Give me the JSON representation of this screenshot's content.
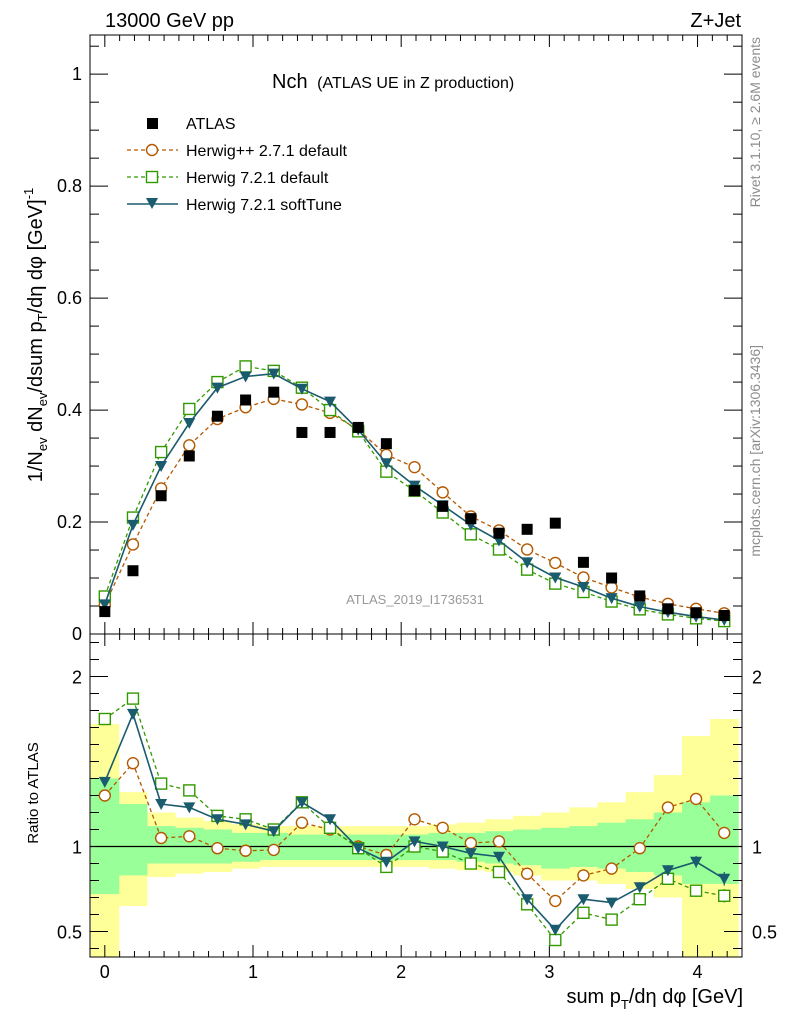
{
  "header": {
    "left": "13000 GeV pp",
    "right": "Z+Jet"
  },
  "side_labels": {
    "rivet": "Rivet 3.1.10, ≥ 2.6M events",
    "mcplots": "mcplots.cern.ch [arXiv:1306.3436]"
  },
  "chart_data": {
    "type": "scatter",
    "title_main": "Nch",
    "title_sub": "(ATLAS UE in Z production)",
    "analysis_tag": "ATLAS_2019_I1736531",
    "ylabel": "1/N_ev dN_ev/dsum p_T/dη dφ [GeV]^-1",
    "xlabel": "sum p_T/dη dφ [GeV]",
    "ratio_ylabel": "Ratio to ATLAS",
    "xlim": [
      -0.1,
      4.3
    ],
    "ylim": [
      0,
      1.07
    ],
    "ratio_ylim": [
      0.35,
      2.25
    ],
    "x_ticks": [
      "0",
      "1",
      "2",
      "3",
      "4"
    ],
    "y_ticks": [
      "0",
      "0.2",
      "0.4",
      "0.6",
      "0.8",
      "1"
    ],
    "ratio_ticks": [
      "0.5",
      "1",
      "2"
    ],
    "x": [
      0,
      0.19,
      0.38,
      0.57,
      0.76,
      0.95,
      1.14,
      1.33,
      1.52,
      1.71,
      1.9,
      2.09,
      2.28,
      2.47,
      2.66,
      2.85,
      3.04,
      3.23,
      3.42,
      3.61,
      3.8,
      3.99,
      4.18
    ],
    "series": [
      {
        "name": "ATLAS",
        "color": "#000000",
        "marker": "square-filled",
        "values": [
          0.04,
          0.113,
          0.247,
          0.318,
          0.389,
          0.418,
          0.432,
          0.36,
          0.36,
          0.369,
          0.34,
          0.256,
          0.228,
          0.206,
          0.18,
          0.187,
          0.198,
          0.128,
          0.1,
          0.068,
          0.045,
          0.038,
          0.033
        ]
      },
      {
        "name": "Herwig++ 2.7.1 default",
        "color": "#b35900",
        "marker": "circle-open",
        "values": [
          0.052,
          0.16,
          0.26,
          0.337,
          0.384,
          0.405,
          0.42,
          0.41,
          0.395,
          0.365,
          0.32,
          0.298,
          0.253,
          0.21,
          0.185,
          0.151,
          0.127,
          0.101,
          0.083,
          0.066,
          0.054,
          0.045,
          0.037
        ]
      },
      {
        "name": "Herwig 7.2.1 default",
        "color": "#339900",
        "marker": "square-open",
        "values": [
          0.067,
          0.208,
          0.325,
          0.402,
          0.45,
          0.478,
          0.47,
          0.44,
          0.4,
          0.362,
          0.29,
          0.256,
          0.217,
          0.178,
          0.151,
          0.115,
          0.09,
          0.075,
          0.058,
          0.044,
          0.035,
          0.028,
          0.023
        ]
      },
      {
        "name": "Herwig 7.2.1 softTune",
        "color": "#1b5b6e",
        "marker": "triangle-down-filled",
        "values": [
          0.053,
          0.195,
          0.3,
          0.377,
          0.44,
          0.46,
          0.465,
          0.438,
          0.415,
          0.365,
          0.305,
          0.265,
          0.23,
          0.195,
          0.167,
          0.128,
          0.101,
          0.084,
          0.064,
          0.049,
          0.039,
          0.031,
          0.025
        ]
      }
    ],
    "ratios": [
      {
        "name": "Herwig++ 2.7.1 default",
        "values": [
          1.3,
          1.49,
          1.05,
          1.06,
          0.99,
          0.975,
          0.98,
          1.14,
          1.1,
          1.0,
          0.95,
          1.16,
          1.11,
          1.02,
          1.03,
          0.84,
          0.68,
          0.83,
          0.87,
          0.99,
          1.23,
          1.28,
          1.08
        ]
      },
      {
        "name": "Herwig 7.2.1 default",
        "values": [
          1.75,
          1.87,
          1.37,
          1.33,
          1.18,
          1.16,
          1.1,
          1.26,
          1.11,
          0.99,
          0.88,
          1.0,
          0.97,
          0.9,
          0.85,
          0.66,
          0.45,
          0.61,
          0.57,
          0.69,
          0.81,
          0.74,
          0.71
        ]
      },
      {
        "name": "Herwig 7.2.1 softTune",
        "values": [
          1.38,
          1.78,
          1.25,
          1.23,
          1.16,
          1.13,
          1.09,
          1.26,
          1.16,
          0.99,
          0.91,
          1.03,
          1.0,
          0.96,
          0.94,
          0.69,
          0.51,
          0.69,
          0.67,
          0.76,
          0.86,
          0.91,
          0.81
        ]
      }
    ],
    "ratio_error_bars": [
      {
        "name": "Herwig 7.2.1 default",
        "errors": [
          0.02,
          0.02,
          0.015,
          0.015,
          0.01,
          0.01,
          0.01,
          0.01,
          0.01,
          0.01,
          0.01,
          0.01,
          0.015,
          0.015,
          0.015,
          0.015,
          0.02,
          0.02,
          0.02,
          0.03,
          0.03,
          0.035,
          0.04
        ]
      },
      {
        "name": "Herwig 7.2.1 softTune",
        "errors": [
          0.02,
          0.02,
          0.015,
          0.015,
          0.01,
          0.01,
          0.01,
          0.01,
          0.01,
          0.01,
          0.01,
          0.01,
          0.015,
          0.015,
          0.015,
          0.015,
          0.02,
          0.02,
          0.02,
          0.03,
          0.03,
          0.035,
          0.04
        ]
      }
    ],
    "uncertainty_bands": {
      "x_edges": [
        -0.095,
        0.095,
        0.285,
        0.475,
        0.665,
        0.855,
        1.045,
        1.235,
        1.425,
        1.615,
        1.805,
        1.995,
        2.185,
        2.375,
        2.565,
        2.755,
        2.945,
        3.135,
        3.325,
        3.515,
        3.705,
        3.895,
        4.085,
        4.275
      ],
      "stat_lo": [
        0.72,
        0.83,
        0.9,
        0.9,
        0.9,
        0.91,
        0.92,
        0.92,
        0.92,
        0.92,
        0.92,
        0.92,
        0.92,
        0.91,
        0.9,
        0.89,
        0.87,
        0.88,
        0.87,
        0.85,
        0.83,
        0.78,
        0.78
      ],
      "stat_hi": [
        1.4,
        1.25,
        1.12,
        1.11,
        1.1,
        1.08,
        1.08,
        1.07,
        1.07,
        1.07,
        1.07,
        1.07,
        1.08,
        1.08,
        1.09,
        1.1,
        1.11,
        1.12,
        1.14,
        1.16,
        1.2,
        1.26,
        1.3
      ],
      "syst_lo": [
        0.35,
        0.65,
        0.82,
        0.84,
        0.85,
        0.87,
        0.88,
        0.88,
        0.88,
        0.88,
        0.88,
        0.88,
        0.87,
        0.86,
        0.85,
        0.83,
        0.8,
        0.8,
        0.78,
        0.75,
        0.7,
        0.35,
        0.35
      ],
      "syst_hi": [
        1.72,
        1.32,
        1.2,
        1.17,
        1.15,
        1.13,
        1.12,
        1.12,
        1.12,
        1.12,
        1.12,
        1.12,
        1.13,
        1.14,
        1.16,
        1.18,
        1.2,
        1.23,
        1.26,
        1.32,
        1.42,
        1.65,
        1.75
      ],
      "stat_color": "#99ff99",
      "syst_color": "#ffff99"
    }
  }
}
